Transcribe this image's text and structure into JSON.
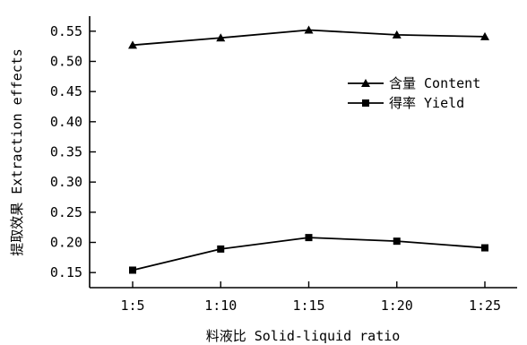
{
  "chart_data": {
    "type": "line",
    "categories": [
      "1:5",
      "1:10",
      "1:15",
      "1:20",
      "1:25"
    ],
    "series": [
      {
        "name": "含量 Content",
        "marker": "triangle",
        "values": [
          0.527,
          0.539,
          0.552,
          0.544,
          0.541
        ]
      },
      {
        "name": "得率 Yield",
        "marker": "square",
        "values": [
          0.154,
          0.189,
          0.208,
          0.202,
          0.191
        ]
      }
    ],
    "y_ticks": [
      "0.15",
      "0.20",
      "0.25",
      "0.30",
      "0.35",
      "0.40",
      "0.45",
      "0.50",
      "0.55"
    ],
    "xlabel": "料液比 Solid-liquid ratio",
    "ylabel": "提取效果 Extraction effects",
    "ylim": [
      0.125,
      0.575
    ],
    "legend": "upper-right",
    "grid": false,
    "colors": {
      "line": "#000000",
      "background": "#ffffff"
    }
  }
}
